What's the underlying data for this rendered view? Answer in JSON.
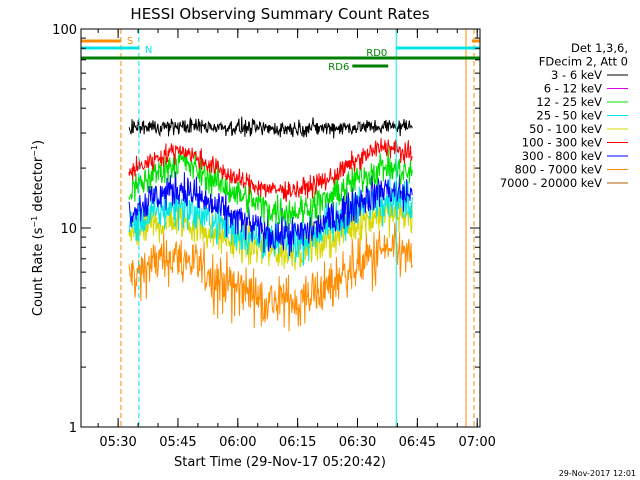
{
  "chart_data": {
    "type": "line",
    "title": "HESSI Observing Summary Count Rates",
    "xlabel": "Start Time (29-Nov-17 05:20:42)",
    "ylabel": "Count Rate (s⁻¹ detector⁻¹)",
    "ylabel_main": "Count Rate (s",
    "ylabel_sup1": "−1",
    "ylabel_mid": " detector",
    "ylabel_sup2": "−1",
    "ylabel_end": ")",
    "x_unit": "minutes since 05:20:42",
    "xlim": [
      0,
      100
    ],
    "y_scale": "log",
    "ylim": [
      1,
      100
    ],
    "x_ticks": [
      {
        "value": 9.3,
        "label": "05:30"
      },
      {
        "value": 24.3,
        "label": "05:45"
      },
      {
        "value": 39.3,
        "label": "06:00"
      },
      {
        "value": 54.3,
        "label": "06:15"
      },
      {
        "value": 69.3,
        "label": "06:30"
      },
      {
        "value": 84.3,
        "label": "06:45"
      },
      {
        "value": 99.3,
        "label": "07:00"
      }
    ],
    "y_ticks": [
      {
        "value": 1,
        "label": "1"
      },
      {
        "value": 10,
        "label": "10"
      },
      {
        "value": 100,
        "label": "100"
      }
    ],
    "legend": {
      "placement": "right",
      "header": [
        "Det 1,3,6,",
        "FDecim 2, Att 0"
      ],
      "entries": [
        {
          "label": "3 - 6 keV",
          "color": "#000000"
        },
        {
          "label": "6 - 12 keV",
          "color": "#e000e0"
        },
        {
          "label": "12 - 25 keV",
          "color": "#00e000"
        },
        {
          "label": "25 - 50 keV",
          "color": "#00e6e6"
        },
        {
          "label": "50 - 100 keV",
          "color": "#d8d800"
        },
        {
          "label": "100 - 300 keV",
          "color": "#ff0000"
        },
        {
          "label": "300 - 800 keV",
          "color": "#0000ff"
        },
        {
          "label": "800 - 7000 keV",
          "color": "#ff8c00"
        },
        {
          "label": "7000 - 20000 keV",
          "color": "#b06000"
        }
      ]
    },
    "data_window": [
      12,
      83
    ],
    "series": [
      {
        "color": "#ff8c00",
        "noise": 0.06,
        "keys": [
          [
            12,
            5.7
          ],
          [
            19,
            6.8
          ],
          [
            25,
            7.2
          ],
          [
            30,
            6.3
          ],
          [
            40,
            5.0
          ],
          [
            48,
            4.3
          ],
          [
            55,
            4.4
          ],
          [
            62,
            5.2
          ],
          [
            69,
            6.6
          ],
          [
            76,
            7.8
          ],
          [
            83,
            7.2
          ]
        ]
      },
      {
        "color": "#d8d800",
        "noise": 0.05,
        "keys": [
          [
            12,
            9.0
          ],
          [
            19,
            10.5
          ],
          [
            25,
            11.0
          ],
          [
            30,
            10.0
          ],
          [
            40,
            8.4
          ],
          [
            48,
            7.6
          ],
          [
            55,
            7.8
          ],
          [
            62,
            8.8
          ],
          [
            69,
            10.6
          ],
          [
            76,
            12.0
          ],
          [
            83,
            11.4
          ]
        ]
      },
      {
        "color": "#00e6e6",
        "noise": 0.05,
        "keys": [
          [
            12,
            10.0
          ],
          [
            19,
            12.0
          ],
          [
            25,
            13.0
          ],
          [
            30,
            11.5
          ],
          [
            40,
            9.4
          ],
          [
            48,
            8.4
          ],
          [
            55,
            8.6
          ],
          [
            62,
            10.0
          ],
          [
            69,
            12.5
          ],
          [
            76,
            14.5
          ],
          [
            83,
            13.5
          ]
        ]
      },
      {
        "color": "#0000ff",
        "noise": 0.045,
        "keys": [
          [
            12,
            12.0
          ],
          [
            19,
            14.5
          ],
          [
            25,
            16.0
          ],
          [
            30,
            14.0
          ],
          [
            40,
            10.8
          ],
          [
            48,
            9.2
          ],
          [
            55,
            9.3
          ],
          [
            62,
            10.8
          ],
          [
            69,
            13.5
          ],
          [
            76,
            15.8
          ],
          [
            83,
            14.5
          ]
        ]
      },
      {
        "color": "#00e000",
        "noise": 0.04,
        "keys": [
          [
            12,
            15.0
          ],
          [
            19,
            19.0
          ],
          [
            25,
            22.0
          ],
          [
            30,
            19.0
          ],
          [
            40,
            14.5
          ],
          [
            48,
            12.2
          ],
          [
            55,
            12.2
          ],
          [
            62,
            14.0
          ],
          [
            69,
            17.5
          ],
          [
            76,
            20.5
          ],
          [
            83,
            18.5
          ]
        ]
      },
      {
        "color": "#ff0000",
        "noise": 0.025,
        "keys": [
          [
            12,
            19.0
          ],
          [
            19,
            22.5
          ],
          [
            25,
            25.0
          ],
          [
            30,
            22.0
          ],
          [
            40,
            17.2
          ],
          [
            48,
            15.5
          ],
          [
            55,
            15.6
          ],
          [
            62,
            17.5
          ],
          [
            69,
            21.8
          ],
          [
            76,
            26.0
          ],
          [
            83,
            23.0
          ]
        ]
      },
      {
        "color": "#000000",
        "noise": 0.02,
        "keys": [
          [
            12,
            32.0
          ],
          [
            30,
            32.5
          ],
          [
            48,
            31.5
          ],
          [
            65,
            32.0
          ],
          [
            83,
            32.5
          ]
        ]
      }
    ],
    "annotations": [
      {
        "label": "S",
        "color": "#ff8c00",
        "x_start": 0,
        "x_end": 10,
        "y": 89
      },
      {
        "label": "N",
        "color": "#00e6e6",
        "x_start": 0,
        "x_end": 14.5,
        "y": 79
      },
      {
        "label": "RD0",
        "color": "#008000",
        "x_start": 0,
        "x_end": 100,
        "y": 70
      },
      {
        "label": "RD6",
        "color": "#008000",
        "x_start": 68,
        "x_end": 77,
        "y": 63
      }
    ],
    "vlines": [
      {
        "x": 0,
        "color": "#00e6e6",
        "style": "solid"
      },
      {
        "x": 10,
        "color": "#ff8c00",
        "style": "dashed"
      },
      {
        "x": 14.5,
        "color": "#00e6e6",
        "style": "dashed"
      },
      {
        "x": 79,
        "color": "#00e6e6",
        "style": "solid"
      },
      {
        "x": 96.5,
        "color": "#ff8c00",
        "style": "solid"
      },
      {
        "x": 98.5,
        "color": "#ff8c00",
        "style": "dashed"
      }
    ],
    "timestamp": "29-Nov-2017 12:01"
  }
}
